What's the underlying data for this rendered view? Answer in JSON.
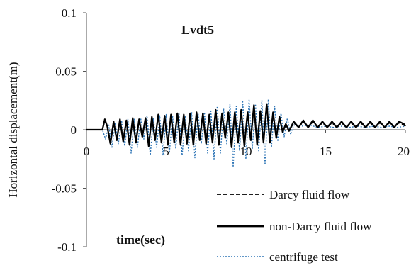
{
  "chart_data": {
    "type": "line",
    "title": "Lvdt5",
    "xlabel": "time(sec)",
    "ylabel": "Horizontal displacement(m)",
    "xlim": [
      0,
      20
    ],
    "ylim": [
      -0.1,
      0.1
    ],
    "x_ticks": [
      {
        "value": 0,
        "label": "0"
      },
      {
        "value": 5,
        "label": "5"
      },
      {
        "value": 10,
        "label": "10"
      },
      {
        "value": 15,
        "label": "15"
      },
      {
        "value": 20,
        "label": "20"
      }
    ],
    "y_ticks": [
      {
        "value": 0.1,
        "label": "0.1"
      },
      {
        "value": 0.05,
        "label": "0.05"
      },
      {
        "value": 0,
        "label": "0"
      },
      {
        "value": -0.05,
        "label": "-0.05"
      },
      {
        "value": -0.1,
        "label": "-0.1"
      }
    ],
    "grid": false,
    "legend_position": "bottom-right",
    "series": [
      {
        "name": "Darcy fluid flow",
        "style": "dashed",
        "color": "#000000",
        "x": [
          0,
          0.5,
          1.0,
          1.15,
          1.3,
          1.5,
          1.7,
          1.9,
          2.1,
          2.3,
          2.5,
          2.7,
          2.9,
          3.1,
          3.3,
          3.5,
          3.7,
          3.9,
          4.1,
          4.3,
          4.5,
          4.7,
          4.9,
          5.1,
          5.3,
          5.5,
          5.7,
          5.9,
          6.1,
          6.3,
          6.5,
          6.7,
          6.9,
          7.1,
          7.3,
          7.5,
          7.7,
          7.9,
          8.1,
          8.3,
          8.5,
          8.7,
          8.9,
          9.1,
          9.3,
          9.5,
          9.7,
          9.9,
          10.1,
          10.3,
          10.5,
          10.7,
          10.9,
          11.1,
          11.3,
          11.5,
          11.7,
          11.9,
          12.1,
          12.3,
          12.5,
          12.7,
          13.0,
          13.3,
          13.6,
          13.9,
          14.2,
          14.5,
          14.8,
          15.1,
          15.4,
          15.7,
          16.0,
          16.3,
          16.6,
          16.9,
          17.2,
          17.5,
          17.8,
          18.1,
          18.4,
          18.7,
          19.0,
          19.3,
          19.6,
          19.9,
          20
        ],
        "y": [
          0,
          0,
          0,
          0.008,
          0.003,
          -0.01,
          0.006,
          -0.008,
          0.008,
          -0.009,
          0.008,
          -0.012,
          0.009,
          -0.01,
          0.009,
          -0.005,
          0.009,
          -0.013,
          0.01,
          -0.008,
          0.012,
          -0.01,
          0.011,
          -0.012,
          0.012,
          -0.01,
          0.014,
          -0.012,
          0.012,
          -0.011,
          0.014,
          -0.012,
          0.014,
          -0.008,
          0.014,
          -0.011,
          0.012,
          -0.01,
          0.016,
          -0.012,
          0.014,
          -0.006,
          0.014,
          -0.014,
          0.014,
          -0.01,
          0.016,
          -0.013,
          0.014,
          -0.008,
          0.02,
          -0.012,
          0.015,
          -0.01,
          0.022,
          -0.01,
          0.014,
          -0.006,
          0.01,
          -0.002,
          0.004,
          -0.001,
          0.006,
          0.002,
          0.007,
          0.002,
          0.007,
          0.002,
          0.006,
          0.002,
          0.006,
          0.002,
          0.006,
          0.002,
          0.006,
          0.002,
          0.006,
          0.002,
          0.006,
          0.002,
          0.006,
          0.002,
          0.006,
          0.002,
          0.006,
          0.004,
          0.003
        ]
      },
      {
        "name": "non-Darcy fluid flow",
        "style": "solid",
        "color": "#000000",
        "x": [
          0,
          0.5,
          1.0,
          1.15,
          1.3,
          1.5,
          1.7,
          1.9,
          2.1,
          2.3,
          2.5,
          2.7,
          2.9,
          3.1,
          3.3,
          3.5,
          3.7,
          3.9,
          4.1,
          4.3,
          4.5,
          4.7,
          4.9,
          5.1,
          5.3,
          5.5,
          5.7,
          5.9,
          6.1,
          6.3,
          6.5,
          6.7,
          6.9,
          7.1,
          7.3,
          7.5,
          7.7,
          7.9,
          8.1,
          8.3,
          8.5,
          8.7,
          8.9,
          9.1,
          9.3,
          9.5,
          9.7,
          9.9,
          10.1,
          10.3,
          10.5,
          10.7,
          10.9,
          11.1,
          11.3,
          11.5,
          11.7,
          11.9,
          12.1,
          12.3,
          12.5,
          12.7,
          13.0,
          13.3,
          13.6,
          13.9,
          14.2,
          14.5,
          14.8,
          15.1,
          15.4,
          15.7,
          16.0,
          16.3,
          16.6,
          16.9,
          17.2,
          17.5,
          17.8,
          18.1,
          18.4,
          18.7,
          19.0,
          19.3,
          19.6,
          19.9,
          20
        ],
        "y": [
          0,
          0,
          0,
          0.009,
          0.003,
          -0.012,
          0.007,
          -0.009,
          0.009,
          -0.01,
          0.008,
          -0.013,
          0.01,
          -0.011,
          0.009,
          -0.006,
          0.01,
          -0.014,
          0.011,
          -0.009,
          0.013,
          -0.011,
          0.012,
          -0.013,
          0.013,
          -0.011,
          0.014,
          -0.013,
          0.013,
          -0.012,
          0.014,
          -0.013,
          0.015,
          -0.009,
          0.014,
          -0.012,
          0.013,
          -0.011,
          0.017,
          -0.013,
          0.014,
          -0.007,
          0.015,
          -0.015,
          0.015,
          -0.011,
          0.017,
          -0.014,
          0.015,
          -0.009,
          0.021,
          -0.013,
          0.016,
          -0.011,
          0.022,
          -0.011,
          0.015,
          -0.007,
          0.011,
          -0.002,
          0.005,
          -0.001,
          0.007,
          0.002,
          0.008,
          0.002,
          0.008,
          0.002,
          0.007,
          0.002,
          0.007,
          0.002,
          0.007,
          0.002,
          0.007,
          0.002,
          0.007,
          0.002,
          0.007,
          0.002,
          0.007,
          0.002,
          0.007,
          0.002,
          0.007,
          0.005,
          0.003
        ]
      },
      {
        "name": "centrifuge test",
        "style": "dotted",
        "color": "#2e75b6",
        "x": [
          0,
          0.5,
          1.0,
          1.2,
          1.4,
          1.6,
          1.8,
          2.0,
          2.2,
          2.4,
          2.6,
          2.8,
          3.0,
          3.2,
          3.4,
          3.6,
          3.8,
          4.0,
          4.2,
          4.4,
          4.6,
          4.8,
          5.0,
          5.2,
          5.4,
          5.6,
          5.8,
          6.0,
          6.2,
          6.4,
          6.6,
          6.8,
          7.0,
          7.2,
          7.4,
          7.6,
          7.8,
          8.0,
          8.2,
          8.4,
          8.6,
          8.8,
          9.0,
          9.2,
          9.4,
          9.6,
          9.8,
          10.0,
          10.2,
          10.4,
          10.6,
          10.8,
          11.0,
          11.2,
          11.4,
          11.6,
          11.8,
          12.0,
          12.2,
          12.4,
          12.6,
          12.8,
          13.0,
          13.5,
          14.0,
          14.5,
          15.0,
          15.5,
          16.0,
          16.5,
          17.0,
          17.5,
          18.0,
          18.5,
          19.0,
          19.5,
          20
        ],
        "y": [
          0,
          0,
          0,
          -0.008,
          0.004,
          -0.015,
          0.006,
          -0.012,
          0.008,
          -0.014,
          0.009,
          -0.02,
          0.009,
          -0.015,
          0.01,
          -0.008,
          0.012,
          -0.022,
          0.01,
          -0.015,
          0.012,
          -0.022,
          0.013,
          -0.02,
          0.012,
          -0.016,
          0.014,
          -0.022,
          0.012,
          -0.018,
          0.015,
          -0.024,
          0.014,
          -0.012,
          0.015,
          -0.02,
          0.016,
          -0.025,
          0.02,
          -0.02,
          0.018,
          -0.012,
          0.022,
          -0.032,
          0.02,
          -0.018,
          0.024,
          -0.025,
          0.026,
          -0.016,
          0.022,
          -0.018,
          0.025,
          -0.03,
          0.026,
          -0.015,
          0.02,
          -0.01,
          0.014,
          -0.006,
          0.01,
          -0.004,
          0.004,
          0.003,
          0.004,
          0.002,
          0.003,
          0.002,
          0.003,
          0.002,
          0.003,
          0.002,
          0.003,
          0.002,
          0.003,
          0.002,
          0.003
        ]
      }
    ]
  }
}
